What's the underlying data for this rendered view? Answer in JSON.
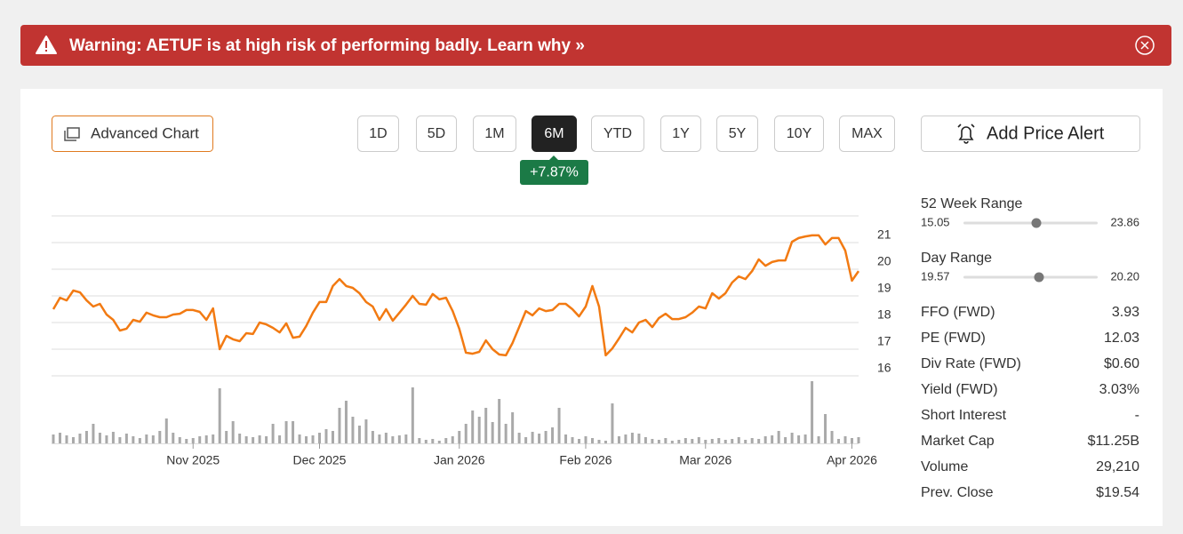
{
  "banner": {
    "text": "Warning: AETUF is at high risk of performing badly. Learn why »"
  },
  "toolbar": {
    "advanced_chart": "Advanced Chart",
    "periods": [
      "1D",
      "5D",
      "1M",
      "6M",
      "YTD",
      "1Y",
      "5Y",
      "10Y",
      "MAX"
    ],
    "active_period_index": 3,
    "period_change": "+7.87%",
    "price_alert": "Add Price Alert"
  },
  "chart_data": {
    "type": "line",
    "color": "#f27a12",
    "grid": true,
    "values": [
      18.5,
      18.93,
      18.83,
      19.2,
      19.13,
      18.83,
      18.6,
      18.7,
      18.3,
      18.1,
      17.7,
      17.77,
      18.1,
      18.03,
      18.37,
      18.27,
      18.2,
      18.2,
      18.3,
      18.33,
      18.47,
      18.47,
      18.4,
      18.1,
      18.53,
      17.0,
      17.5,
      17.37,
      17.3,
      17.6,
      17.57,
      18.0,
      17.93,
      17.8,
      17.63,
      17.97,
      17.43,
      17.47,
      17.87,
      18.37,
      18.77,
      18.77,
      19.37,
      19.63,
      19.37,
      19.3,
      19.1,
      18.77,
      18.6,
      18.1,
      18.5,
      18.07,
      18.37,
      18.67,
      19.0,
      18.7,
      18.67,
      19.07,
      18.87,
      18.93,
      18.43,
      17.77,
      16.87,
      16.83,
      16.9,
      17.33,
      17.0,
      16.8,
      16.77,
      17.23,
      17.83,
      18.43,
      18.27,
      18.53,
      18.43,
      18.47,
      18.7,
      18.7,
      18.5,
      18.23,
      18.6,
      19.37,
      18.6,
      16.77,
      17.03,
      17.4,
      17.8,
      17.63,
      18.0,
      18.1,
      17.83,
      18.17,
      18.33,
      18.13,
      18.13,
      18.2,
      18.37,
      18.6,
      18.53,
      19.1,
      18.9,
      19.1,
      19.5,
      19.73,
      19.63,
      19.93,
      20.37,
      20.13,
      20.27,
      20.33,
      20.33,
      21.03,
      21.17,
      21.23,
      21.27,
      21.27,
      20.93,
      21.17,
      21.17,
      20.7,
      19.57,
      19.93
    ],
    "xlim": [
      0,
      121
    ],
    "xticks": [
      {
        "value": 21,
        "label": "Nov 2025"
      },
      {
        "value": 40,
        "label": "Dec 2025"
      },
      {
        "value": 61,
        "label": "Jan 2026"
      },
      {
        "value": 80,
        "label": "Feb 2026"
      },
      {
        "value": 98,
        "label": "Mar 2026"
      },
      {
        "value": 120,
        "label": "Apr 2026"
      }
    ],
    "ylim": [
      16,
      22
    ],
    "yticks": [
      16,
      17,
      18,
      19,
      20,
      21
    ],
    "volume": {
      "color": "#a9a9a9",
      "ylim": [
        0,
        80
      ],
      "values": [
        10,
        12,
        9,
        7,
        11,
        14,
        22,
        12,
        9,
        13,
        7,
        11,
        8,
        6,
        10,
        9,
        14,
        28,
        12,
        7,
        5,
        6,
        8,
        9,
        10,
        62,
        14,
        25,
        11,
        8,
        7,
        9,
        8,
        22,
        9,
        25,
        25,
        10,
        8,
        9,
        12,
        16,
        14,
        40,
        48,
        30,
        20,
        27,
        14,
        10,
        12,
        8,
        9,
        10,
        63,
        6,
        4,
        5,
        3,
        6,
        8,
        14,
        22,
        37,
        30,
        40,
        24,
        50,
        22,
        35,
        12,
        7,
        13,
        11,
        14,
        18,
        40,
        10,
        7,
        5,
        8,
        6,
        4,
        3,
        45,
        8,
        10,
        12,
        11,
        7,
        5,
        4,
        6,
        3,
        4,
        6,
        5,
        7,
        4,
        5,
        6,
        4,
        5,
        7,
        4,
        6,
        5,
        8,
        9,
        14,
        7,
        12,
        9,
        10,
        70,
        8,
        33,
        14,
        5,
        8,
        6,
        7
      ]
    }
  },
  "ranges": [
    {
      "label": "52 Week Range",
      "low": "15.05",
      "high": "23.86"
    },
    {
      "label": "Day Range",
      "low": "19.57",
      "high": "20.20"
    }
  ],
  "stats": [
    [
      "FFO (FWD)",
      "3.93"
    ],
    [
      "PE (FWD)",
      "12.03"
    ],
    [
      "Div Rate (FWD)",
      "$0.60"
    ],
    [
      "Yield (FWD)",
      "3.03%"
    ],
    [
      "Short Interest",
      "-"
    ],
    [
      "Market Cap",
      "$11.25B"
    ],
    [
      "Volume",
      "29,210"
    ],
    [
      "Prev. Close",
      "$19.54"
    ]
  ]
}
